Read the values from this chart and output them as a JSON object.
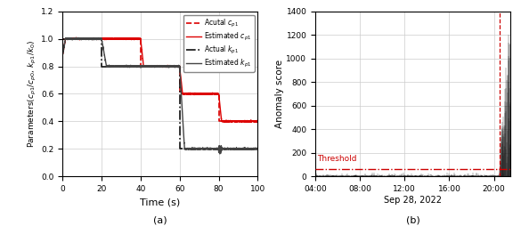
{
  "subplot_a": {
    "title": "(a)",
    "xlabel": "Time (s)",
    "ylabel": "Parameters($c_{p1}/c_{p0}$, $k_{p1}/k_0$)",
    "xlim": [
      0,
      100
    ],
    "ylim": [
      0,
      1.2
    ],
    "xticks": [
      0,
      20,
      40,
      60,
      80,
      100
    ],
    "yticks": [
      0,
      0.2,
      0.4,
      0.6,
      0.8,
      1.0,
      1.2
    ],
    "actual_cp1_x": [
      0,
      40,
      40,
      60,
      60,
      80,
      80,
      100
    ],
    "actual_cp1_y": [
      1.0,
      1.0,
      0.8,
      0.8,
      0.6,
      0.6,
      0.4,
      0.4
    ],
    "actual_kp1_x": [
      0,
      20,
      20,
      60,
      60,
      100
    ],
    "actual_kp1_y": [
      1.0,
      1.0,
      0.8,
      0.8,
      0.2,
      0.2
    ],
    "red_color": "#dd0000",
    "black_color": "#111111",
    "gray_color": "#444444",
    "legend_labels": [
      "Acutal $c_{p1}$",
      "Estimated $c_{p1}$",
      "Actual $k_{p1}$",
      "Estimated $k_{p1}$"
    ]
  },
  "subplot_b": {
    "title": "(b)",
    "xlabel": "Sep 28, 2022",
    "ylabel": "Anomaly score",
    "ylim": [
      0,
      1400
    ],
    "yticks": [
      0,
      200,
      400,
      600,
      800,
      1000,
      1200,
      1400
    ],
    "threshold": 60,
    "threshold_label": "Threshold",
    "threshold_color": "#cc0000",
    "vline_color": "#cc0000",
    "xtick_labels": [
      "04:00",
      "08:00",
      "12:00",
      "16:00",
      "20:00"
    ],
    "bar_color": "#111111",
    "total_hours": 17.5,
    "spike_hour_start": 16.5
  }
}
